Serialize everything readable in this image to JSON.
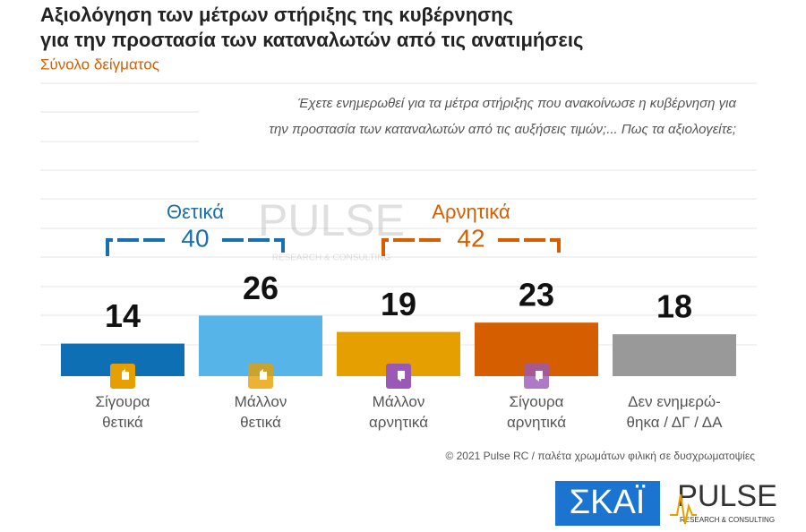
{
  "chart_data": {
    "type": "bar",
    "title": [
      "Αξιολόγηση των μέτρων στήριξης της κυβέρνησης",
      "για την προστασία των καταναλωτών από τις ανατιμήσεις"
    ],
    "subtitle": "Σύνολο δείγματος",
    "question": [
      "Έχετε ενημερωθεί για τα μέτρα στήριξης που ανακοίνωσε η κυβέρνηση για",
      "την προστασία των καταναλωτών από τις αυξήσεις τιμών;... Πως τα αξιολογείτε;"
    ],
    "categories": [
      "Σίγουρα\nθετικά",
      "Μάλλον\nθετικά",
      "Μάλλον\nαρνητικά",
      "Σίγουρα\nαρνητικά",
      "Δεν ενημερώ-\nθηκα / ΔΓ / ΔΑ"
    ],
    "values": [
      14,
      26,
      19,
      23,
      18
    ],
    "colors": [
      "#0f6fb4",
      "#56b4e9",
      "#e69f00",
      "#d55e00",
      "#999999"
    ],
    "groups": [
      {
        "name": "Θετικά",
        "total": 40,
        "color": "#1a6fb0"
      },
      {
        "name": "Αρνητικά",
        "total": 42,
        "color": "#d55e00"
      }
    ],
    "footer": "© 2021 Pulse RC   /   παλέτα χρωμάτων φιλική σε δυσχρωματοψίες",
    "logos": {
      "skai": "ΣΚΑΪ",
      "pulse": "PULSE",
      "pulse_sub": "RESEARCH & CONSULTING"
    }
  }
}
